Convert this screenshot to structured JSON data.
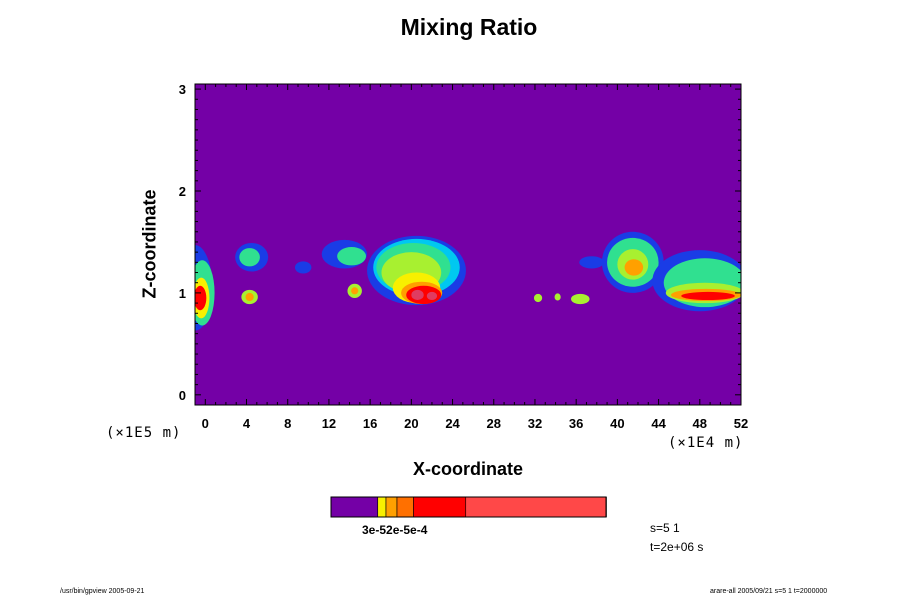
{
  "chart_data": {
    "type": "heatmap",
    "title": "Mixing Ratio",
    "xlabel": "X-coordinate",
    "ylabel": "Z-coordinate",
    "x_unit": "(×1E4 m)",
    "y_unit": "(×1E5 m)",
    "xlim": [
      -1,
      52
    ],
    "ylim": [
      -0.1,
      3.05
    ],
    "x_ticks": [
      0,
      4,
      8,
      12,
      16,
      20,
      24,
      28,
      32,
      36,
      40,
      44,
      48,
      52
    ],
    "y_ticks": [
      0,
      1,
      2,
      3
    ],
    "background_color": "#7400a6",
    "level_colors": [
      "#1a3ce6",
      "#00c8f0",
      "#30e090",
      "#a8f030",
      "#f8f000",
      "#ffa000",
      "#ff0000",
      "#e03c60"
    ],
    "cells": [
      {
        "x": -1,
        "z": 1.05,
        "rx": 1.7,
        "rz": 0.42,
        "level": 0
      },
      {
        "x": -0.3,
        "z": 1.0,
        "rx": 1.2,
        "rz": 0.32,
        "level": 2
      },
      {
        "x": -0.4,
        "z": 0.95,
        "rx": 0.8,
        "rz": 0.2,
        "level": 4
      },
      {
        "x": -0.5,
        "z": 0.95,
        "rx": 0.6,
        "rz": 0.12,
        "level": 6
      },
      {
        "x": 4.5,
        "z": 1.35,
        "rx": 1.6,
        "rz": 0.14,
        "level": 0
      },
      {
        "x": 4.3,
        "z": 1.35,
        "rx": 1.0,
        "rz": 0.09,
        "level": 2
      },
      {
        "x": 4.3,
        "z": 0.96,
        "rx": 0.8,
        "rz": 0.07,
        "level": 3
      },
      {
        "x": 4.3,
        "z": 0.96,
        "rx": 0.4,
        "rz": 0.04,
        "level": 5
      },
      {
        "x": 9.5,
        "z": 1.25,
        "rx": 0.8,
        "rz": 0.06,
        "level": 0
      },
      {
        "x": 13.5,
        "z": 1.38,
        "rx": 2.2,
        "rz": 0.14,
        "level": 0
      },
      {
        "x": 14.2,
        "z": 1.36,
        "rx": 1.4,
        "rz": 0.09,
        "level": 2
      },
      {
        "x": 14.5,
        "z": 1.02,
        "rx": 0.7,
        "rz": 0.07,
        "level": 3
      },
      {
        "x": 14.5,
        "z": 1.02,
        "rx": 0.35,
        "rz": 0.035,
        "level": 5
      },
      {
        "x": 20.5,
        "z": 1.22,
        "rx": 4.8,
        "rz": 0.34,
        "level": 0
      },
      {
        "x": 20.5,
        "z": 1.25,
        "rx": 4.2,
        "rz": 0.28,
        "level": 1
      },
      {
        "x": 20.2,
        "z": 1.25,
        "rx": 3.6,
        "rz": 0.24,
        "level": 2
      },
      {
        "x": 20.0,
        "z": 1.2,
        "rx": 2.9,
        "rz": 0.2,
        "level": 3
      },
      {
        "x": 20.5,
        "z": 1.05,
        "rx": 2.3,
        "rz": 0.15,
        "level": 4
      },
      {
        "x": 21.0,
        "z": 1.0,
        "rx": 2.0,
        "rz": 0.11,
        "level": 5
      },
      {
        "x": 21.2,
        "z": 0.98,
        "rx": 1.7,
        "rz": 0.09,
        "level": 6
      },
      {
        "x": 20.6,
        "z": 0.98,
        "rx": 0.6,
        "rz": 0.05,
        "level": 7
      },
      {
        "x": 22.0,
        "z": 0.97,
        "rx": 0.5,
        "rz": 0.04,
        "level": 7
      },
      {
        "x": 32.3,
        "z": 0.95,
        "rx": 0.4,
        "rz": 0.04,
        "level": 3
      },
      {
        "x": 34.2,
        "z": 0.96,
        "rx": 0.3,
        "rz": 0.035,
        "level": 3
      },
      {
        "x": 36.4,
        "z": 0.94,
        "rx": 0.9,
        "rz": 0.05,
        "level": 3
      },
      {
        "x": 37.5,
        "z": 1.3,
        "rx": 1.2,
        "rz": 0.06,
        "level": 0
      },
      {
        "x": 41.5,
        "z": 1.3,
        "rx": 3.0,
        "rz": 0.3,
        "level": 0
      },
      {
        "x": 41.5,
        "z": 1.3,
        "rx": 2.5,
        "rz": 0.24,
        "level": 2
      },
      {
        "x": 41.5,
        "z": 1.28,
        "rx": 1.5,
        "rz": 0.15,
        "level": 3
      },
      {
        "x": 41.6,
        "z": 1.25,
        "rx": 0.9,
        "rz": 0.08,
        "level": 5
      },
      {
        "x": 48.0,
        "z": 1.12,
        "rx": 4.6,
        "rz": 0.3,
        "level": 0
      },
      {
        "x": 48.5,
        "z": 1.1,
        "rx": 4.0,
        "rz": 0.24,
        "level": 2
      },
      {
        "x": 48.5,
        "z": 1.0,
        "rx": 3.8,
        "rz": 0.1,
        "level": 3
      },
      {
        "x": 48.6,
        "z": 0.98,
        "rx": 3.4,
        "rz": 0.06,
        "level": 5
      },
      {
        "x": 48.8,
        "z": 0.97,
        "rx": 2.6,
        "rz": 0.04,
        "level": 6
      }
    ],
    "colorbar": {
      "colors": [
        "#7400a6",
        "#f8f000",
        "#ffa000",
        "#ff7000",
        "#ff0000",
        "#ff4848",
        "#ff9c9c"
      ],
      "bounds": [
        0,
        0.17,
        0.2,
        0.24,
        0.3,
        0.49,
        1.0
      ],
      "label": "3e-52e-5e-4"
    },
    "info": {
      "s": "s=5 1",
      "t": "t=2e+06 s"
    },
    "footer_left": "/usr/bin/gpview 2005-09-21",
    "footer_right": "arare-all 2005/09/21 s=5 1 t=2000000"
  }
}
